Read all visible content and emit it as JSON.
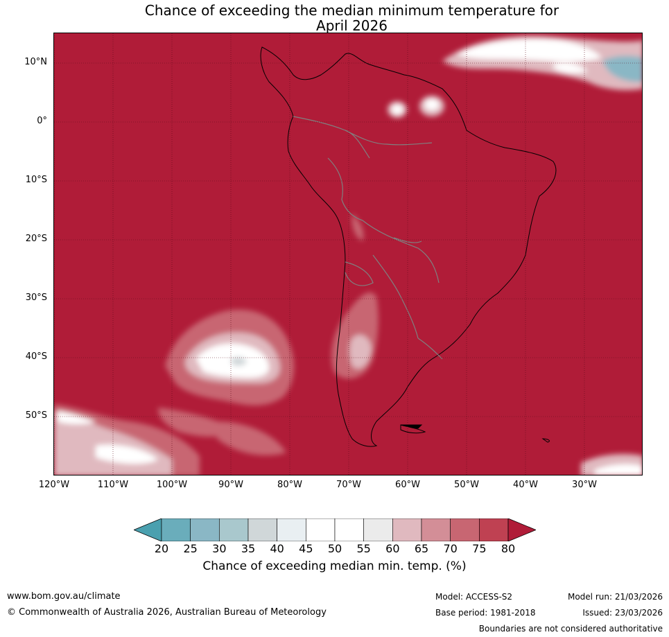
{
  "title": {
    "line1": "Chance of exceeding the median minimum temperature for",
    "line2": "April 2026"
  },
  "axes": {
    "lat_labels": [
      "10°N",
      "0°",
      "10°S",
      "20°S",
      "30°S",
      "40°S",
      "50°S"
    ],
    "lon_labels": [
      "120°W",
      "110°W",
      "100°W",
      "90°W",
      "80°W",
      "70°W",
      "60°W",
      "50°W",
      "40°W",
      "30°W"
    ]
  },
  "colorbar": {
    "ticks": [
      "20",
      "25",
      "30",
      "35",
      "40",
      "45",
      "50",
      "55",
      "60",
      "65",
      "70",
      "75",
      "80"
    ],
    "colors": [
      "#4aa0af",
      "#6aadbb",
      "#8ab7c5",
      "#a9c8cd",
      "#d0d7d9",
      "#e9eff2",
      "#ffffff",
      "#ffffff",
      "#ebebeb",
      "#e0b9bf",
      "#d38e97",
      "#c86672",
      "#bf4152",
      "#b01c38"
    ],
    "label": "Chance of exceeding median min. temp. (%)"
  },
  "map_colors": {
    "ocean_land_high": "#b01c38",
    "coast": "#000000",
    "borders": "#808080"
  },
  "footer": {
    "website": "www.bom.gov.au/climate",
    "copyright": "© Commonwealth of Australia 2026, Australian Bureau of Meteorology",
    "model": "Model: ACCESS-S2",
    "model_run": "Model run: 21/03/2026",
    "base_period": "Base period: 1981-2018",
    "issued": "Issued: 23/03/2026",
    "disclaimer": "Boundaries are not considered authoritative"
  }
}
